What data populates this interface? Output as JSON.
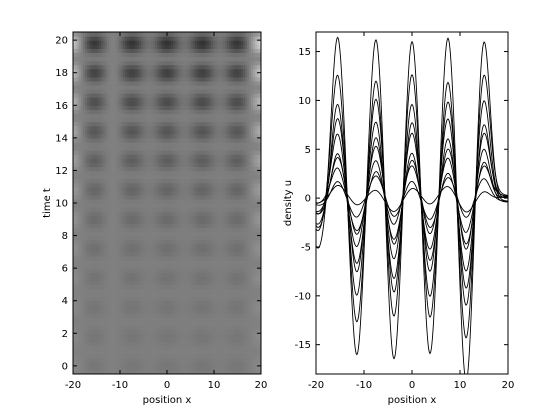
{
  "chart_data": [
    {
      "type": "heatmap",
      "xlabel": "position x",
      "ylabel": "time t",
      "xlim": [
        -20,
        20
      ],
      "ylim": [
        -0.5,
        20.5
      ],
      "xticks": [
        -20,
        -10,
        0,
        10,
        20
      ],
      "yticks": [
        0,
        2,
        4,
        6,
        8,
        10,
        12,
        14,
        16,
        18,
        20
      ],
      "colormap": "gray",
      "pattern": {
        "peaks_x": [
          -15.5,
          -7.5,
          0,
          7.5,
          15
        ],
        "band_period_t": 1.8,
        "contrast_low_t": 0.12,
        "contrast_high_t": 1.0
      }
    },
    {
      "type": "line",
      "xlabel": "position x",
      "ylabel": "density u",
      "xlim": [
        -20,
        20
      ],
      "ylim": [
        -18,
        17
      ],
      "xticks": [
        -20,
        -10,
        0,
        10,
        20
      ],
      "yticks": [
        -15,
        -10,
        -5,
        0,
        5,
        10,
        15
      ],
      "line_color": "#000000",
      "pattern": {
        "peaks_x": [
          -15.5,
          -7.5,
          0,
          7.5,
          15
        ],
        "amplitudes": [
          1.0,
          2.0,
          3.0,
          4.0,
          5.0,
          6.5,
          8.0,
          10.0,
          12.5,
          16.5
        ]
      }
    }
  ]
}
